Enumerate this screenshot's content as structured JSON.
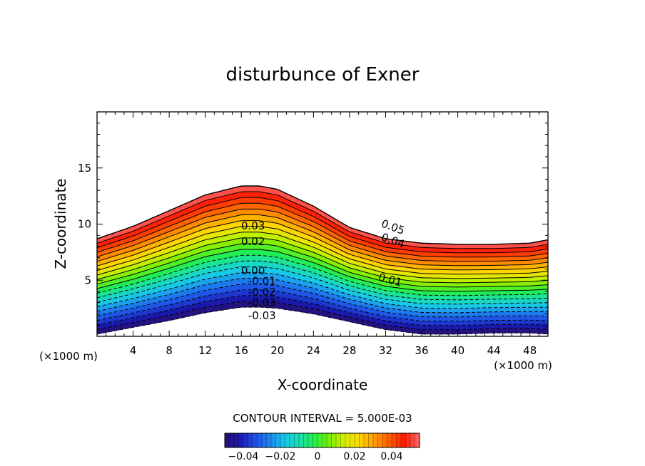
{
  "chart_data": {
    "type": "contour",
    "title": "disturbunce of Exner",
    "xlabel": "X-coordinate",
    "ylabel": "Z-coordinate",
    "x_unit_left": "(×1000 m)",
    "x_unit_right": "(×1000 m)",
    "xlim": [
      0,
      50
    ],
    "ylim": [
      0,
      20
    ],
    "x_ticks": [
      4,
      8,
      12,
      16,
      20,
      24,
      28,
      32,
      36,
      40,
      44,
      48
    ],
    "y_ticks": [
      5,
      10,
      15
    ],
    "contour_interval_label": "CONTOUR INTERVAL = 5.000E-03",
    "contour_interval": 0.005,
    "value_range": [
      -0.05,
      0.055
    ],
    "terrain_top_profile": {
      "x": [
        0,
        4,
        8,
        12,
        16,
        18,
        20,
        24,
        28,
        32,
        36,
        40,
        44,
        48,
        50
      ],
      "z": [
        8.7,
        9.8,
        11.2,
        12.6,
        13.4,
        13.4,
        13.1,
        11.6,
        9.7,
        8.7,
        8.3,
        8.2,
        8.2,
        8.3,
        8.6
      ]
    },
    "base_profile": {
      "x": [
        0,
        4,
        8,
        12,
        16,
        18,
        20,
        24,
        28,
        32,
        36,
        40,
        44,
        48,
        50
      ],
      "z": [
        0.2,
        0.8,
        1.4,
        2.1,
        2.6,
        2.6,
        2.5,
        2.0,
        1.3,
        0.6,
        0.2,
        0.2,
        0.3,
        0.3,
        0.2
      ]
    },
    "contour_labels": [
      {
        "text": "0.05",
        "x": 32.8,
        "z": 9.7,
        "angle": 20
      },
      {
        "text": "0.04",
        "x": 32.8,
        "z": 8.5,
        "angle": 20
      },
      {
        "text": "0.03",
        "x": 17.3,
        "z": 9.8,
        "angle": 0
      },
      {
        "text": "0.02",
        "x": 17.3,
        "z": 8.4,
        "angle": 0
      },
      {
        "text": "0.01",
        "x": 32.5,
        "z": 5.0,
        "angle": 14
      },
      {
        "text": "0.00",
        "x": 17.3,
        "z": 5.8,
        "angle": 0
      },
      {
        "text": "-0.01",
        "x": 18.3,
        "z": 4.9,
        "angle": 0
      },
      {
        "text": "-0.02",
        "x": 18.3,
        "z": 3.9,
        "angle": 0
      },
      {
        "text": "-0.03",
        "x": 18.3,
        "z": 3.0,
        "angle": 0
      },
      {
        "text": "-0.03",
        "x": 18.3,
        "z": 1.8,
        "angle": 0
      }
    ],
    "colorbar": {
      "ticks": [
        -0.04,
        -0.02,
        0,
        0.02,
        0.04
      ],
      "tick_labels": [
        "−0.04",
        "−0.02",
        "0",
        "0.02",
        "0.04"
      ],
      "colors": [
        "#2a0f6c",
        "#1a1ab0",
        "#1e4ee6",
        "#1d86f0",
        "#17c8e8",
        "#18e0b0",
        "#22f04a",
        "#7cf000",
        "#d8f000",
        "#ffd400",
        "#ff9a00",
        "#ff5a00",
        "#ff1a00",
        "#ff6a6a"
      ]
    }
  }
}
